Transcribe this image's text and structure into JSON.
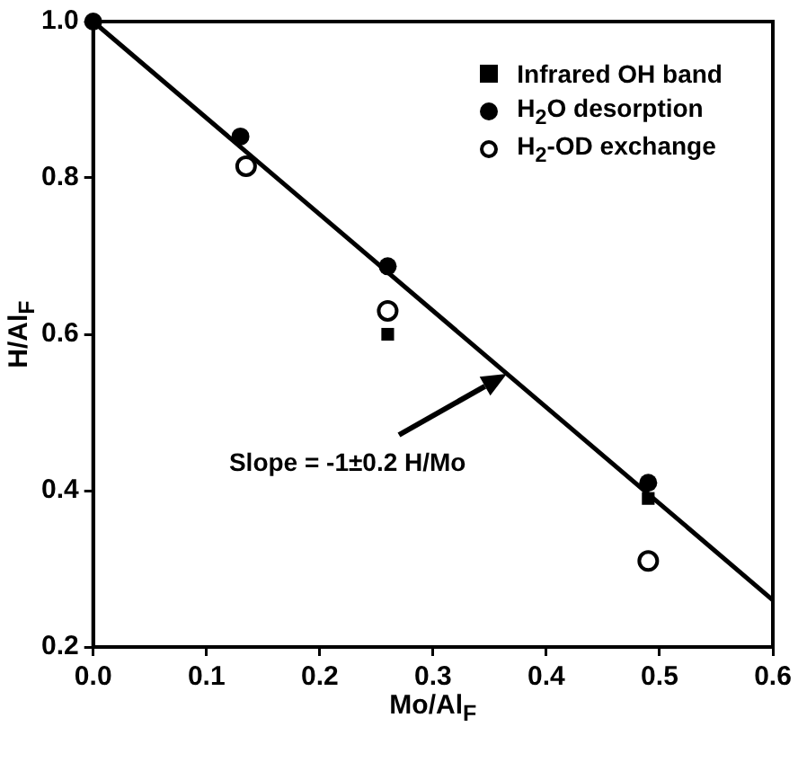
{
  "chart_data": {
    "type": "scatter",
    "xlabel": "Mo/Al$_{F}$",
    "ylabel": "H/Al$_{F}$",
    "xlim": [
      0,
      0.6
    ],
    "xticks": [
      {
        "value": 0,
        "label": "0.0"
      },
      0.1,
      0.2,
      0.3,
      0.4,
      0.5,
      0.6
    ],
    "ylim": [
      0.2,
      1.0
    ],
    "yticks": [
      0.2,
      0.4,
      0.6,
      0.8,
      {
        "value": 1,
        "label": "1.0"
      }
    ],
    "grid": false,
    "legend": "top right",
    "series": [
      {
        "name": "Infrared OH band",
        "color": "#000000",
        "marker": "square",
        "x": [
          0.26,
          0.49
        ],
        "values": [
          0.6,
          0.39
        ]
      },
      {
        "name": "H$_{2}$O desorption",
        "color": "#000000",
        "marker": "circle",
        "x": [
          0,
          0.13,
          0.26,
          0.49
        ],
        "values": [
          1.0,
          0.853,
          0.687,
          0.41
        ]
      },
      {
        "name": "H$_{2}$-OD exchange",
        "color": "#000000",
        "marker": "open-circle",
        "x": [
          0.135,
          0.26,
          0.49
        ],
        "values": [
          0.815,
          0.63,
          0.31
        ]
      },
      {
        "type": "line",
        "color": "#000000",
        "marker": "none",
        "x": [
          0,
          0.6
        ],
        "values": [
          1.0,
          0.26
        ]
      }
    ],
    "annotations": [
      "Slope = -1±0.2 H/Mo"
    ]
  }
}
